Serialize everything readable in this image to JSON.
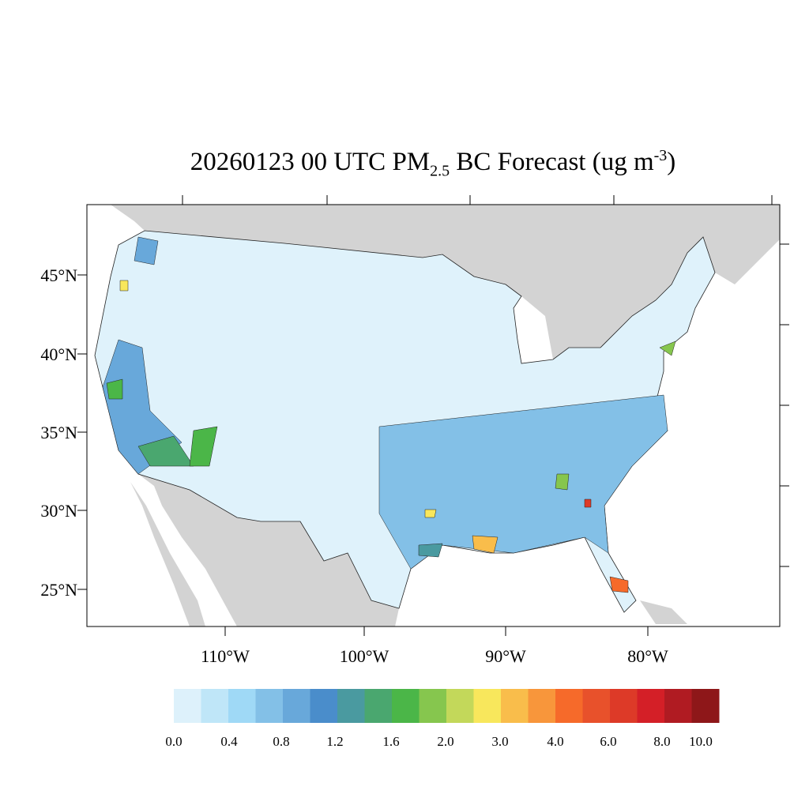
{
  "title": {
    "prefix": "20260123 00 UTC PM",
    "sub": "2.5",
    "mid": " BC Forecast (ug m",
    "sup": "-3",
    "suffix": ")"
  },
  "colors": {
    "land_outside": "#d3d3d3",
    "ocean": "#ffffff",
    "us_base": "#dff2fb"
  },
  "lat_labels": [
    "45°N",
    "40°N",
    "35°N",
    "30°N",
    "25°N"
  ],
  "lon_labels": [
    "110°W",
    "100°W",
    "90°W",
    "80°W"
  ],
  "colorbar": {
    "colors": [
      "#ddf1fb",
      "#bfe6f8",
      "#9fd9f6",
      "#83c0e7",
      "#68a8da",
      "#4a8dcb",
      "#4a9aa0",
      "#4aa76f",
      "#4bb648",
      "#86c64e",
      "#c3d85a",
      "#f8e75c",
      "#f9bd4b",
      "#f8963b",
      "#f66a2a",
      "#e8512b",
      "#dd3a28",
      "#d41f27",
      "#b01b22",
      "#8e1719"
    ],
    "labels": [
      "0.0",
      "0.4",
      "0.8",
      "1.2",
      "1.6",
      "2.0",
      "3.0",
      "4.0",
      "6.0",
      "8.0",
      "10.0"
    ]
  }
}
